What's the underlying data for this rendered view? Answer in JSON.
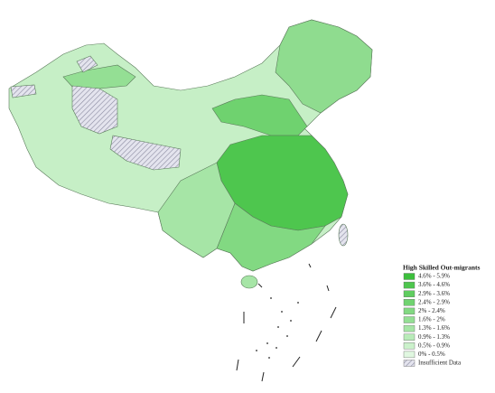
{
  "legend": {
    "title": "High Skilled Out-migrants",
    "items": [
      {
        "label": "4.6% - 5.9%",
        "color": "#3cbf3c"
      },
      {
        "label": "3.6% - 4.6%",
        "color": "#4ec64e"
      },
      {
        "label": "2.9% - 3.6%",
        "color": "#5fcd5f"
      },
      {
        "label": "2.4% - 2.9%",
        "color": "#70d370"
      },
      {
        "label": "2% - 2.4%",
        "color": "#82d982"
      },
      {
        "label": "1.6% - 2%",
        "color": "#94df94"
      },
      {
        "label": "1.3% - 1.6%",
        "color": "#a6e5a6"
      },
      {
        "label": "0.9% - 1.3%",
        "color": "#b8ebb8"
      },
      {
        "label": "0.5% - 0.9%",
        "color": "#cbf1cb"
      },
      {
        "label": "0% - 0.5%",
        "color": "#e0f7e0"
      },
      {
        "label": "Insufficient Data",
        "color": "hatch"
      }
    ]
  }
}
